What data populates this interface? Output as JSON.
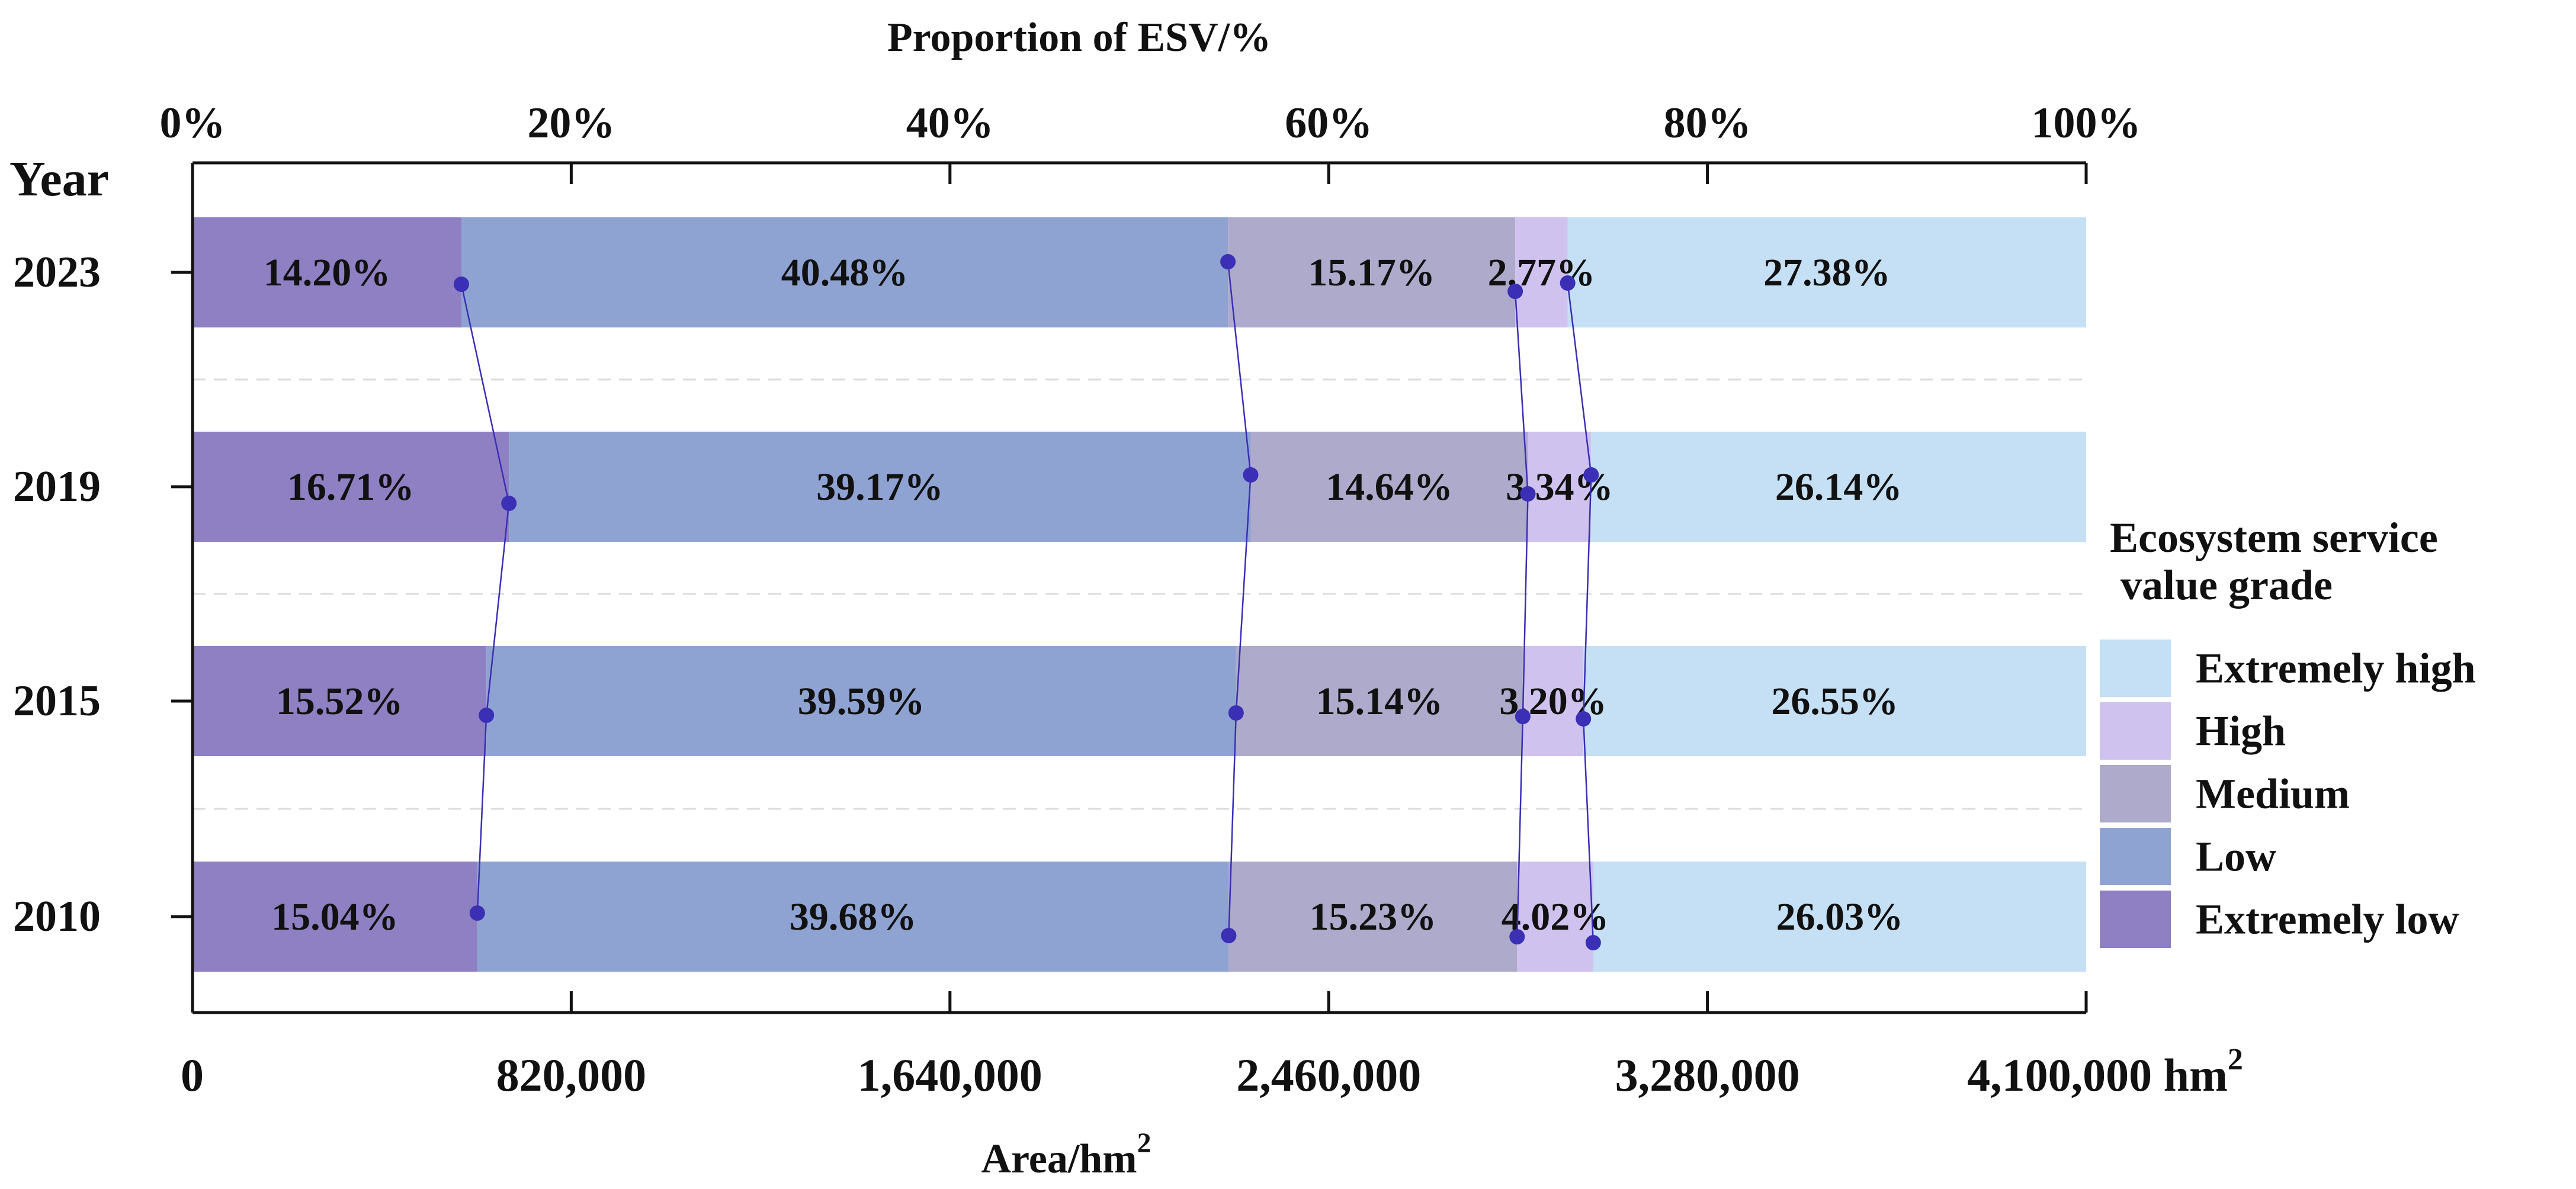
{
  "chart_data": {
    "type": "bar",
    "stacked": true,
    "orientation": "horizontal",
    "title": "Proportion of ESV/%",
    "xlabel": "Area/hm",
    "xlabel_sup": "2",
    "ylabel": "Year",
    "top_axis": {
      "ticks": [
        "0%",
        "20%",
        "40%",
        "60%",
        "80%",
        "100%"
      ],
      "range": [
        0,
        100
      ]
    },
    "bottom_axis": {
      "ticks": [
        "0",
        "820,000",
        "1,640,000",
        "2,460,000",
        "3,280,000",
        "4,100,000 hm"
      ],
      "last_tick_sup": "2",
      "range": [
        0,
        4100000
      ]
    },
    "categories": [
      "2023",
      "2019",
      "2015",
      "2010"
    ],
    "series": [
      {
        "name": "Extremely low",
        "color": "#8e80c2",
        "values": [
          14.2,
          16.71,
          15.52,
          15.04
        ],
        "labels": [
          "14.20%",
          "16.71%",
          "15.52%",
          "15.04%"
        ]
      },
      {
        "name": "Low",
        "color": "#8fa3d3",
        "values": [
          40.48,
          39.17,
          39.59,
          39.68
        ],
        "labels": [
          "40.48%",
          "39.17%",
          "39.59%",
          "39.68%"
        ]
      },
      {
        "name": "Medium",
        "color": "#aeaacb",
        "values": [
          15.17,
          14.64,
          15.14,
          15.23
        ],
        "labels": [
          "15.17%",
          "14.64%",
          "15.14%",
          "15.23%"
        ]
      },
      {
        "name": "High",
        "color": "#cfc2ee",
        "values": [
          2.77,
          3.34,
          3.2,
          4.02
        ],
        "labels": [
          "2.77%",
          "3.34%",
          "3.20%",
          "4.02%"
        ]
      },
      {
        "name": "Extremely high",
        "color": "#c5dff4",
        "values": [
          27.38,
          26.14,
          26.55,
          26.03
        ],
        "labels": [
          "27.38%",
          "26.14%",
          "26.55%",
          "26.03%"
        ]
      }
    ],
    "legend": {
      "title_line1": "Ecosystem service",
      "title_line2": " value grade",
      "placement": "right",
      "order": [
        "Extremely high",
        "High",
        "Medium",
        "Low",
        "Extremely low"
      ]
    },
    "connector_color": "#3a2fb5"
  }
}
